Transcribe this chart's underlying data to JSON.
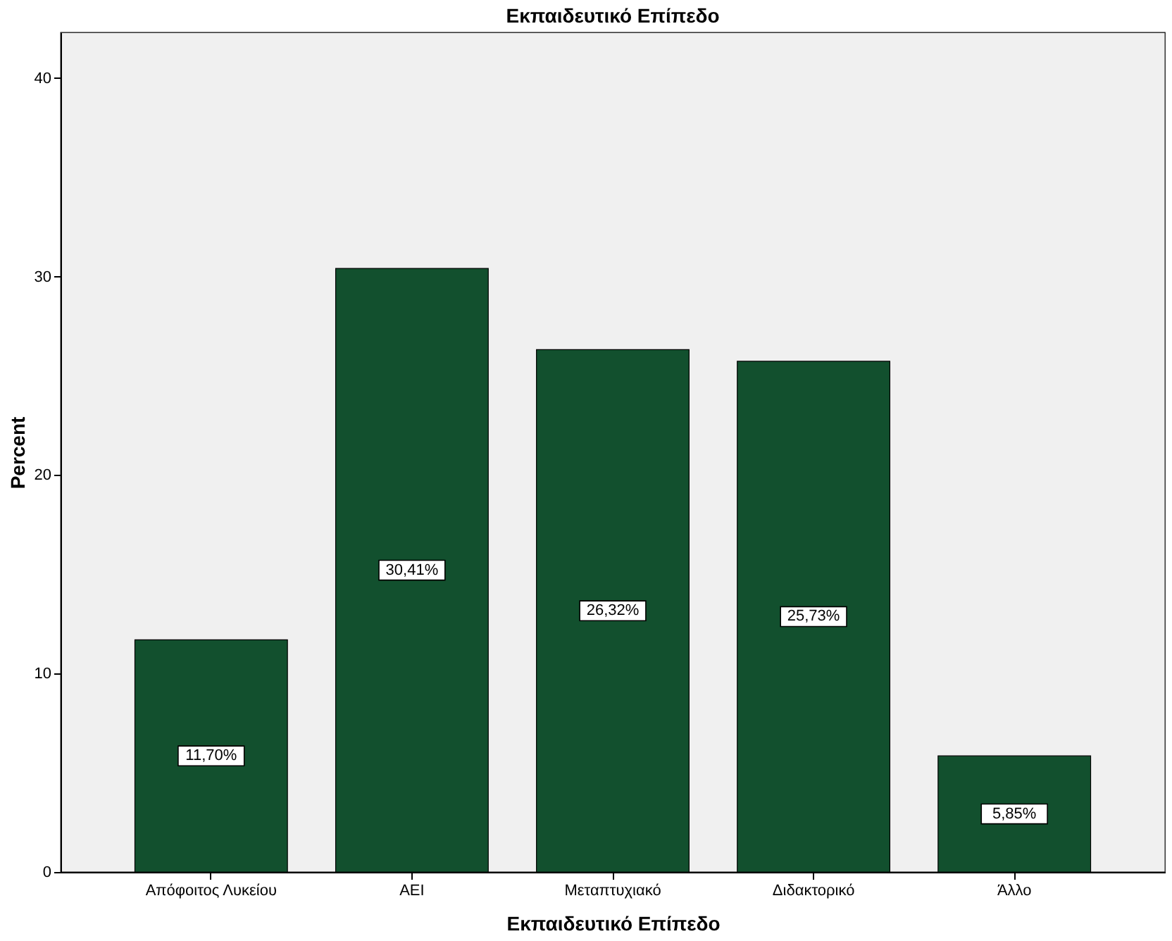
{
  "chart_data": {
    "type": "bar",
    "title": "Εκπαιδευτικό Επίπεδο",
    "xlabel": "Εκπαιδευτικό Επίπεδο",
    "ylabel": "Percent",
    "categories": [
      "Απόφοιτος Λυκείου",
      "ΑΕΙ",
      "Μεταπτυχιακό",
      "Διδακτορικό",
      "Άλλο"
    ],
    "values": [
      11.7,
      30.41,
      26.32,
      25.73,
      5.85
    ],
    "value_labels": [
      "11,70%",
      "30,41%",
      "26,32%",
      "25,73%",
      "5,85%"
    ],
    "color": "#12502e",
    "ylim": [
      0,
      42.3
    ],
    "yticks": [
      0,
      10,
      20,
      30,
      40
    ],
    "grid": false
  }
}
